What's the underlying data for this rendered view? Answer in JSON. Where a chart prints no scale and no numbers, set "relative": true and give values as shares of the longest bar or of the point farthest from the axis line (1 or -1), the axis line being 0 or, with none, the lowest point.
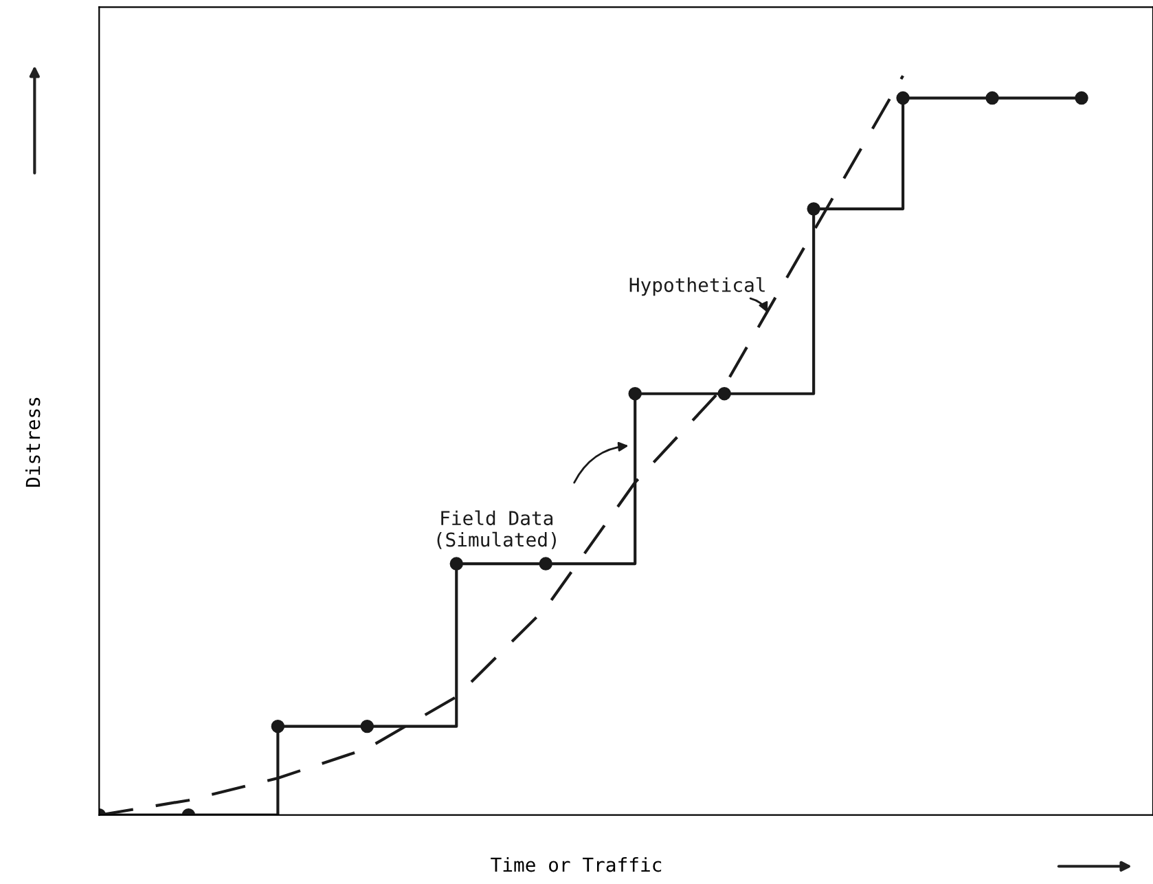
{
  "chart_data": {
    "type": "line",
    "relative": true,
    "xlabel": "Time or Traffic",
    "ylabel": "Distress",
    "categories": [
      null,
      null,
      null,
      null,
      null,
      null,
      null,
      null,
      null,
      null,
      null,
      null
    ],
    "series": [
      {
        "name": "Field Data\n(Simulated)",
        "type": "step",
        "color": "#1a1a1a",
        "marker": "circle",
        "line_style": "solid",
        "values": [
          0,
          0,
          0.12,
          0.12,
          0.34,
          0.34,
          0.57,
          0.57,
          0.82,
          0.97,
          0.97,
          0.97
        ]
      },
      {
        "name": "Hypothetical",
        "color": "#1a1a1a",
        "marker": "none",
        "line_style": "dashed",
        "values": [
          0,
          0.02,
          0.05,
          0.09,
          0.16,
          0.28,
          0.45,
          0.58,
          0.79,
          1,
          null,
          null
        ]
      }
    ],
    "legend": false
  }
}
